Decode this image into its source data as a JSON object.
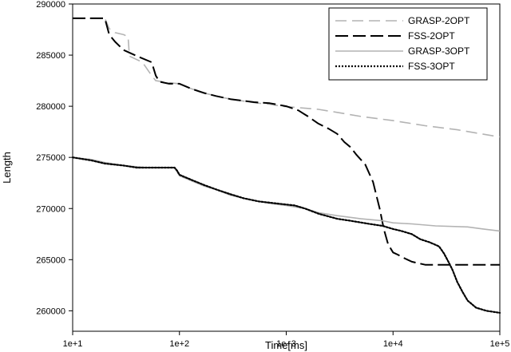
{
  "chart_data": {
    "type": "line",
    "title": "",
    "xlabel": "Time[ms]",
    "ylabel": "Length",
    "xscale": "log",
    "xlim": [
      10,
      100000
    ],
    "ylim": [
      258000,
      290000
    ],
    "x_ticks": [
      {
        "value": 10,
        "label": "1e+1"
      },
      {
        "value": 100,
        "label": "1e+2"
      },
      {
        "value": 1000,
        "label": "1e+3"
      },
      {
        "value": 10000,
        "label": "1e+4"
      },
      {
        "value": 100000,
        "label": "1e+5"
      }
    ],
    "y_ticks": [
      {
        "value": 260000,
        "label": "260000"
      },
      {
        "value": 265000,
        "label": "265000"
      },
      {
        "value": 270000,
        "label": "270000"
      },
      {
        "value": 275000,
        "label": "275000"
      },
      {
        "value": 280000,
        "label": "280000"
      },
      {
        "value": 285000,
        "label": "285000"
      },
      {
        "value": 290000,
        "label": "290000"
      }
    ],
    "grid": false,
    "legend_position": "top-right",
    "series": [
      {
        "name": "GRASP-2OPT",
        "color": "#b3b3b3",
        "dash": "dashed",
        "points": [
          [
            10,
            288600
          ],
          [
            20,
            288600
          ],
          [
            22,
            287600
          ],
          [
            25,
            287200
          ],
          [
            30,
            287000
          ],
          [
            33,
            286800
          ],
          [
            34,
            284900
          ],
          [
            45,
            284300
          ],
          [
            55,
            283000
          ],
          [
            60,
            282500
          ],
          [
            80,
            282300
          ],
          [
            100,
            282200
          ],
          [
            130,
            281700
          ],
          [
            170,
            281300
          ],
          [
            220,
            281000
          ],
          [
            300,
            280700
          ],
          [
            400,
            280500
          ],
          [
            550,
            280300
          ],
          [
            700,
            280200
          ],
          [
            900,
            280000
          ],
          [
            1200,
            279900
          ],
          [
            2000,
            279700
          ],
          [
            3000,
            279400
          ],
          [
            5000,
            279000
          ],
          [
            10000,
            278600
          ],
          [
            20000,
            278100
          ],
          [
            40000,
            277700
          ],
          [
            100000,
            277000
          ]
        ]
      },
      {
        "name": "FSS-2OPT",
        "color": "#000000",
        "dash": "longdash",
        "points": [
          [
            10,
            288600
          ],
          [
            20,
            288600
          ],
          [
            22,
            287000
          ],
          [
            25,
            286300
          ],
          [
            30,
            285500
          ],
          [
            40,
            284900
          ],
          [
            55,
            284300
          ],
          [
            60,
            283000
          ],
          [
            65,
            282400
          ],
          [
            80,
            282200
          ],
          [
            100,
            282200
          ],
          [
            130,
            281700
          ],
          [
            170,
            281300
          ],
          [
            220,
            281000
          ],
          [
            300,
            280700
          ],
          [
            500,
            280400
          ],
          [
            700,
            280300
          ],
          [
            1000,
            280000
          ],
          [
            1300,
            279600
          ],
          [
            1600,
            279000
          ],
          [
            2000,
            278300
          ],
          [
            2500,
            277800
          ],
          [
            3000,
            277300
          ],
          [
            3500,
            276500
          ],
          [
            4000,
            276000
          ],
          [
            4500,
            275300
          ],
          [
            5500,
            274300
          ],
          [
            6500,
            272600
          ],
          [
            7500,
            270000
          ],
          [
            8200,
            268000
          ],
          [
            9000,
            266500
          ],
          [
            10000,
            265700
          ],
          [
            11000,
            265500
          ],
          [
            13000,
            265100
          ],
          [
            15000,
            264800
          ],
          [
            20000,
            264500
          ],
          [
            100000,
            264500
          ]
        ]
      },
      {
        "name": "GRASP-3OPT",
        "color": "#b3b3b3",
        "dash": "solid",
        "points": [
          [
            10,
            275000
          ],
          [
            15,
            274800
          ],
          [
            20,
            274500
          ],
          [
            30,
            274200
          ],
          [
            50,
            274000
          ],
          [
            90,
            274000
          ],
          [
            100,
            273200
          ],
          [
            130,
            272700
          ],
          [
            170,
            272200
          ],
          [
            230,
            271800
          ],
          [
            300,
            271300
          ],
          [
            400,
            271000
          ],
          [
            550,
            270700
          ],
          [
            700,
            270500
          ],
          [
            1000,
            270300
          ],
          [
            1500,
            270000
          ],
          [
            2000,
            269600
          ],
          [
            3000,
            269300
          ],
          [
            5000,
            269000
          ],
          [
            8000,
            268800
          ],
          [
            10000,
            268600
          ],
          [
            15000,
            268500
          ],
          [
            25000,
            268300
          ],
          [
            50000,
            268200
          ],
          [
            70000,
            268000
          ],
          [
            100000,
            267800
          ]
        ]
      },
      {
        "name": "FSS-3OPT",
        "color": "#000000",
        "dash": "dotted",
        "points": [
          [
            10,
            275000
          ],
          [
            15,
            274700
          ],
          [
            20,
            274400
          ],
          [
            30,
            274200
          ],
          [
            40,
            274000
          ],
          [
            90,
            274000
          ],
          [
            95,
            273700
          ],
          [
            100,
            273300
          ],
          [
            130,
            272800
          ],
          [
            170,
            272300
          ],
          [
            230,
            271800
          ],
          [
            300,
            271400
          ],
          [
            400,
            271000
          ],
          [
            550,
            270700
          ],
          [
            800,
            270500
          ],
          [
            1200,
            270300
          ],
          [
            1500,
            270000
          ],
          [
            2000,
            269500
          ],
          [
            3000,
            269000
          ],
          [
            4000,
            268800
          ],
          [
            6000,
            268500
          ],
          [
            8000,
            268300
          ],
          [
            10000,
            268000
          ],
          [
            12000,
            267800
          ],
          [
            15000,
            267500
          ],
          [
            18000,
            267000
          ],
          [
            22000,
            266700
          ],
          [
            27000,
            266300
          ],
          [
            30000,
            265600
          ],
          [
            33000,
            264800
          ],
          [
            36000,
            264000
          ],
          [
            40000,
            262800
          ],
          [
            45000,
            261800
          ],
          [
            50000,
            261000
          ],
          [
            60000,
            260300
          ],
          [
            75000,
            260000
          ],
          [
            100000,
            259800
          ]
        ]
      }
    ]
  }
}
